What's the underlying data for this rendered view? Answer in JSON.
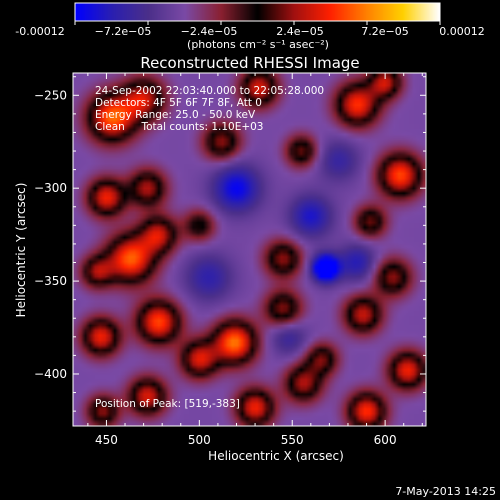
{
  "colorbar": {
    "tick_labels": [
      "-0.00012",
      "−7.2e−05",
      "−2.4e−05",
      "2.4e−05",
      "7.2e−05",
      "0.00012"
    ],
    "units_label": "(photons cm⁻² s⁻¹ asec⁻²)"
  },
  "chart_data": {
    "type": "heatmap",
    "title": "Reconstructed RHESSI Image",
    "xlabel": "Heliocentric X (arcsec)",
    "ylabel": "Heliocentric Y (arcsec)",
    "xlim": [
      432,
      622
    ],
    "ylim": [
      -428,
      -238
    ],
    "x_ticks": [
      450,
      500,
      550,
      600
    ],
    "y_ticks": [
      -250,
      -300,
      -350,
      -400
    ],
    "value_range": [
      -0.00012,
      0.00012
    ],
    "colormap": [
      "#0000ff",
      "#2a1fb0",
      "#4b2f8a",
      "#7a4aa6",
      "#8a2030",
      "#000000",
      "#a01010",
      "#ff2000",
      "#ff8000",
      "#ffd000",
      "#ffffff"
    ],
    "annotations": [
      "24-Sep-2002 22:03:40.000 to 22:05:28.000",
      "Detectors: 4F 5F 6F 7F 8F, Att 0",
      "Energy Range: 25.0 - 50.0 keV",
      "Clean     Total counts: 1.10E+03"
    ],
    "peak_label": "Position of Peak: [519,-383]",
    "peak": [
      519,
      -383
    ],
    "sources": [
      {
        "x": 453,
        "y": -262,
        "amp": 0.95,
        "w": 9
      },
      {
        "x": 470,
        "y": -252,
        "amp": 0.7,
        "w": 8
      },
      {
        "x": 532,
        "y": -246,
        "amp": 0.75,
        "w": 7
      },
      {
        "x": 585,
        "y": -255,
        "amp": 0.85,
        "w": 8
      },
      {
        "x": 600,
        "y": -243,
        "amp": 0.7,
        "w": 6
      },
      {
        "x": 512,
        "y": -275,
        "amp": 0.6,
        "w": 7
      },
      {
        "x": 555,
        "y": -280,
        "amp": 0.55,
        "w": 6
      },
      {
        "x": 608,
        "y": -293,
        "amp": 0.9,
        "w": 8
      },
      {
        "x": 450,
        "y": -305,
        "amp": 0.8,
        "w": 7
      },
      {
        "x": 472,
        "y": -300,
        "amp": 0.65,
        "w": 7
      },
      {
        "x": 463,
        "y": -338,
        "amp": 0.95,
        "w": 9
      },
      {
        "x": 445,
        "y": -345,
        "amp": 0.6,
        "w": 6
      },
      {
        "x": 478,
        "y": -325,
        "amp": 0.7,
        "w": 7
      },
      {
        "x": 500,
        "y": -320,
        "amp": 0.45,
        "w": 6
      },
      {
        "x": 545,
        "y": -338,
        "amp": 0.6,
        "w": 7
      },
      {
        "x": 592,
        "y": -318,
        "amp": 0.55,
        "w": 6
      },
      {
        "x": 604,
        "y": -348,
        "amp": 0.6,
        "w": 7
      },
      {
        "x": 545,
        "y": -365,
        "amp": 0.6,
        "w": 7
      },
      {
        "x": 588,
        "y": -368,
        "amp": 0.7,
        "w": 7
      },
      {
        "x": 478,
        "y": -372,
        "amp": 0.9,
        "w": 8
      },
      {
        "x": 447,
        "y": -380,
        "amp": 0.8,
        "w": 7
      },
      {
        "x": 519,
        "y": -383,
        "amp": 1.0,
        "w": 8
      },
      {
        "x": 500,
        "y": -392,
        "amp": 0.75,
        "w": 7
      },
      {
        "x": 566,
        "y": -392,
        "amp": 0.55,
        "w": 6
      },
      {
        "x": 612,
        "y": -398,
        "amp": 0.8,
        "w": 7
      },
      {
        "x": 472,
        "y": -412,
        "amp": 0.75,
        "w": 7
      },
      {
        "x": 530,
        "y": -418,
        "amp": 0.8,
        "w": 7
      },
      {
        "x": 556,
        "y": -405,
        "amp": 0.65,
        "w": 7
      },
      {
        "x": 590,
        "y": -420,
        "amp": 0.85,
        "w": 7
      },
      {
        "x": 448,
        "y": -420,
        "amp": 0.6,
        "w": 6
      },
      {
        "x": 568,
        "y": -343,
        "amp": -1.0,
        "w": 5
      },
      {
        "x": 520,
        "y": -300,
        "amp": -0.55,
        "w": 9
      },
      {
        "x": 560,
        "y": -315,
        "amp": -0.45,
        "w": 8
      },
      {
        "x": 505,
        "y": -348,
        "amp": -0.35,
        "w": 9
      },
      {
        "x": 575,
        "y": -285,
        "amp": -0.3,
        "w": 8
      },
      {
        "x": 548,
        "y": -380,
        "amp": -0.3,
        "w": 7
      },
      {
        "x": 585,
        "y": -340,
        "amp": -0.4,
        "w": 7
      }
    ]
  },
  "footer": {
    "date": "7-May-2013 14:25"
  }
}
